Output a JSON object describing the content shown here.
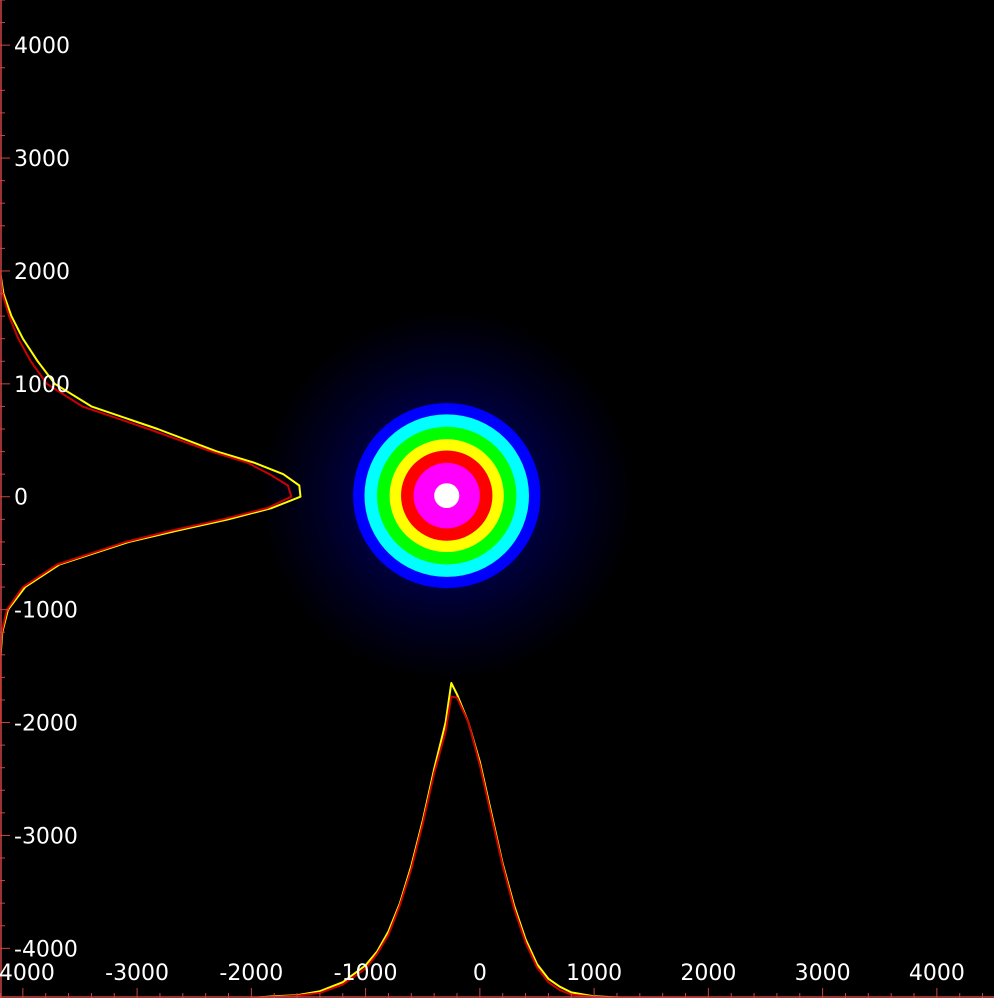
{
  "chart_data": {
    "type": "heatmap",
    "title": "",
    "xlabel": "",
    "ylabel": "",
    "xlim": [
      -4200,
      4500
    ],
    "ylim": [
      -4440,
      4400
    ],
    "x_ticks": [
      -4000,
      -3000,
      -2000,
      -1000,
      0,
      1000,
      2000,
      3000,
      4000
    ],
    "y_ticks": [
      4000,
      3000,
      2000,
      1000,
      0,
      -1000,
      -2000,
      -3000,
      -4000
    ],
    "x_tick_labels": [
      "-4000",
      "-3000",
      "-2000",
      "-1000",
      "0",
      "1000",
      "2000",
      "3000",
      "4000"
    ],
    "y_tick_labels": [
      "4000",
      "3000",
      "2000",
      "1000",
      "0",
      "-1000",
      "-2000",
      "-3000",
      "-4000"
    ],
    "grid": false,
    "colormap": [
      "#000000",
      "#00008b",
      "#0000ff",
      "#00ffff",
      "#00ff00",
      "#ffff00",
      "#ff0000",
      "#ff00ff",
      "#ffffff"
    ],
    "beam": {
      "center_x": -290,
      "center_y": 10,
      "outer_radius": 1650,
      "rings": [
        {
          "radius": 820,
          "color": "#0000ff"
        },
        {
          "radius": 720,
          "color": "#00ffff"
        },
        {
          "radius": 610,
          "color": "#00ff00"
        },
        {
          "radius": 500,
          "color": "#ffff00"
        },
        {
          "radius": 400,
          "color": "#ff0000"
        },
        {
          "radius": 290,
          "color": "#ff00ff"
        },
        {
          "radius": 110,
          "color": "#ffffff"
        }
      ]
    },
    "profiles": {
      "horizontal": {
        "x": [
          -2000,
          -1800,
          -1600,
          -1400,
          -1200,
          -1000,
          -900,
          -800,
          -700,
          -600,
          -500,
          -400,
          -300,
          -250,
          -200,
          -100,
          0,
          100,
          200,
          300,
          400,
          500,
          600,
          700,
          800,
          1000,
          1200,
          1400,
          1600,
          1800,
          2000
        ],
        "baseline_y": -4440,
        "series": [
          {
            "color": "#ffff00",
            "y": [
              -4440,
              -4425,
              -4415,
              -4380,
              -4300,
              -4150,
              -4030,
              -3850,
              -3600,
              -3270,
              -2870,
              -2410,
              -2000,
              -1650,
              -1750,
              -2000,
              -2350,
              -2800,
              -3250,
              -3620,
              -3920,
              -4140,
              -4270,
              -4340,
              -4390,
              -4425,
              -4435,
              -4440,
              -4440,
              -4440,
              -4440
            ]
          },
          {
            "color": "#cc0000",
            "y": [
              -4440,
              -4430,
              -4420,
              -4395,
              -4320,
              -4180,
              -4050,
              -3880,
              -3620,
              -3300,
              -2900,
              -2450,
              -2080,
              -1770,
              -1780,
              -2000,
              -2380,
              -2830,
              -3270,
              -3650,
              -3950,
              -4170,
              -4300,
              -4370,
              -4410,
              -4430,
              -4440,
              -4440,
              -4440,
              -4440,
              -4440
            ]
          }
        ]
      },
      "vertical": {
        "y": [
          2000,
          1800,
          1600,
          1400,
          1200,
          1000,
          800,
          600,
          400,
          300,
          200,
          100,
          0,
          -100,
          -200,
          -300,
          -400,
          -600,
          -800,
          -1000,
          -1200,
          -1400,
          -1600,
          -1800,
          -2000
        ],
        "baseline_x": -4200,
        "series": [
          {
            "color": "#ffff00",
            "x": [
              -4200,
              -4170,
              -4100,
              -4000,
              -3870,
              -3720,
              -3400,
              -2820,
              -2300,
              -1970,
              -1720,
              -1580,
              -1570,
              -1820,
              -2200,
              -2650,
              -3070,
              -3680,
              -3980,
              -4130,
              -4180,
              -4195,
              -4200,
              -4200,
              -4200
            ]
          },
          {
            "color": "#cc0000",
            "x": [
              -4200,
              -4180,
              -4120,
              -4040,
              -3930,
              -3790,
              -3480,
              -2900,
              -2350,
              -2030,
              -1840,
              -1680,
              -1650,
              -1860,
              -2250,
              -2700,
              -3100,
              -3700,
              -4000,
              -4140,
              -4185,
              -4198,
              -4200,
              -4200,
              -4200
            ]
          }
        ]
      }
    }
  }
}
